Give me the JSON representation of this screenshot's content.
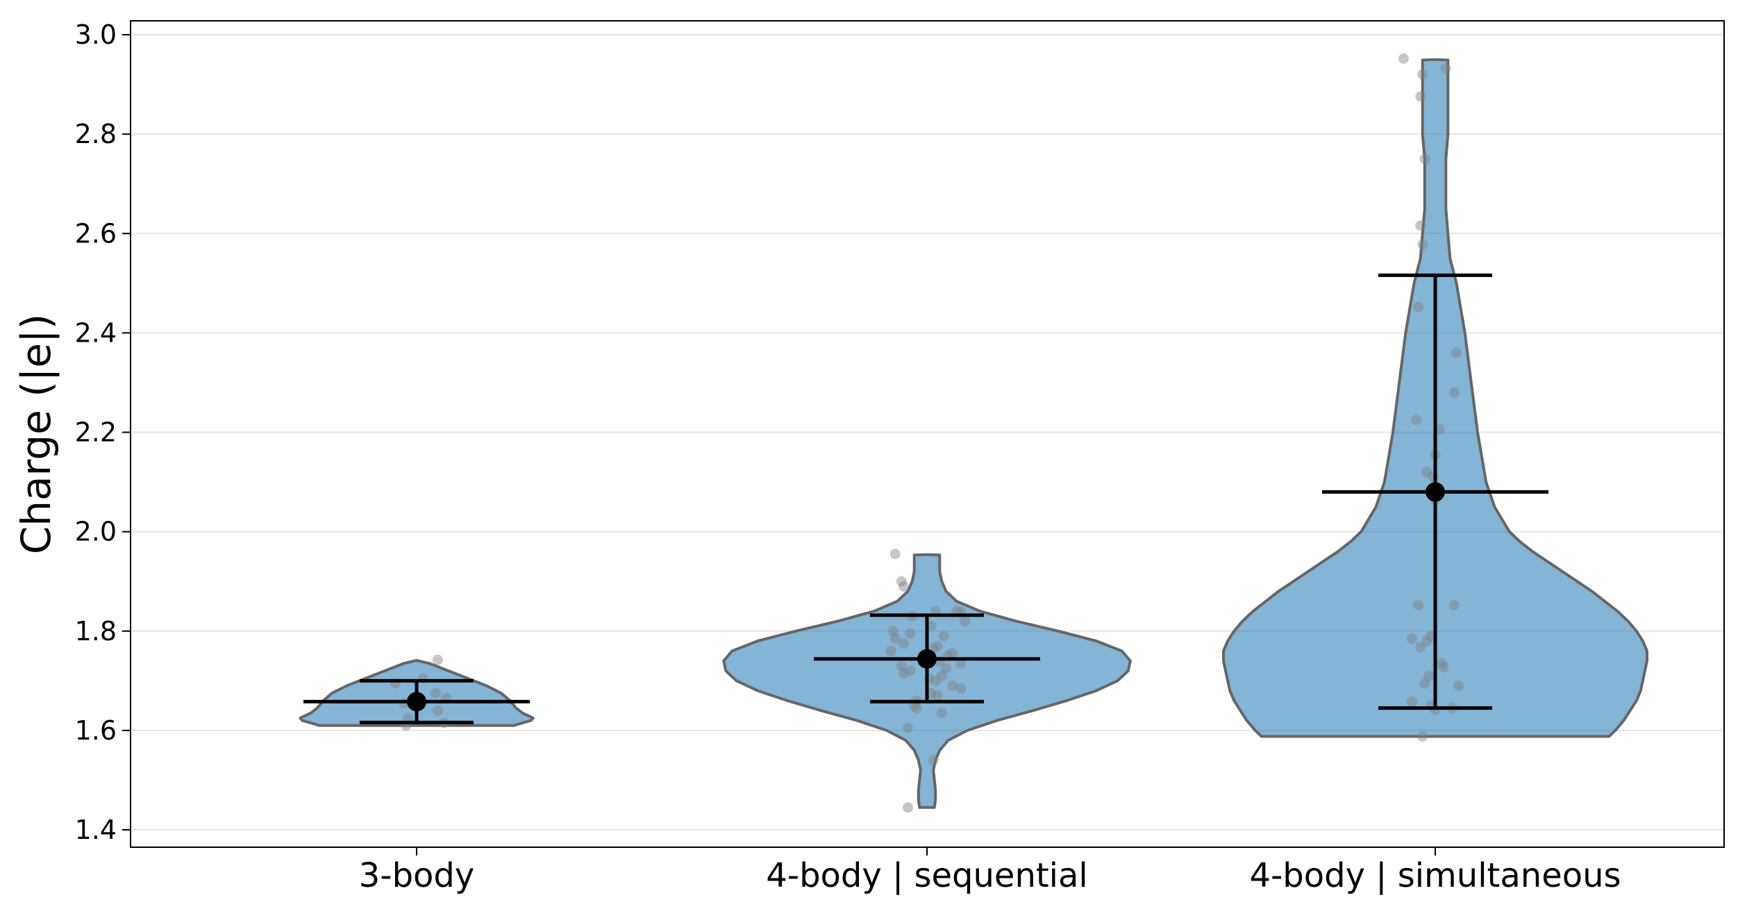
{
  "chart_data": {
    "type": "violin",
    "ylabel": "Charge (|e|)",
    "ylim": [
      1.365,
      3.03
    ],
    "yticks": [
      1.4,
      1.6,
      1.8,
      2.0,
      2.2,
      2.4,
      2.6,
      2.8,
      3.0
    ],
    "ytick_labels": [
      "1.4",
      "1.6",
      "1.8",
      "2.0",
      "2.2",
      "2.4",
      "2.6",
      "2.8",
      "3.0"
    ],
    "grid": "horizontal",
    "categories": [
      "3-body",
      "4-body | sequential",
      "4-body | simultaneous"
    ],
    "colors": {
      "fill": "#1f77b4",
      "edge": "#666666",
      "points": "#808080",
      "summary": "#000000"
    },
    "groups": [
      {
        "name": "3-body",
        "mean": 1.658,
        "error_low": 1.616,
        "error_high": 1.7,
        "violin_profile": [
          [
            1.61,
            0.46
          ],
          [
            1.615,
            0.5
          ],
          [
            1.62,
            0.54
          ],
          [
            1.625,
            0.55
          ],
          [
            1.635,
            0.5
          ],
          [
            1.645,
            0.47
          ],
          [
            1.66,
            0.44
          ],
          [
            1.675,
            0.4
          ],
          [
            1.69,
            0.33
          ],
          [
            1.705,
            0.24
          ],
          [
            1.72,
            0.15
          ],
          [
            1.735,
            0.06
          ],
          [
            1.741,
            0.0
          ]
        ],
        "points": [
          [
            1.742,
            0.1
          ],
          [
            1.695,
            -0.1
          ],
          [
            1.705,
            0.03
          ],
          [
            1.675,
            0.09
          ],
          [
            1.665,
            0.14
          ],
          [
            1.655,
            -0.06
          ],
          [
            1.64,
            0.1
          ],
          [
            1.625,
            -0.04
          ],
          [
            1.615,
            0.13
          ],
          [
            1.61,
            -0.05
          ]
        ]
      },
      {
        "name": "4-body | sequential",
        "mean": 1.744,
        "error_low": 1.658,
        "error_high": 1.832,
        "violin_profile": [
          [
            1.445,
            0.035
          ],
          [
            1.46,
            0.04
          ],
          [
            1.48,
            0.04
          ],
          [
            1.5,
            0.035
          ],
          [
            1.52,
            0.03
          ],
          [
            1.54,
            0.04
          ],
          [
            1.56,
            0.06
          ],
          [
            1.58,
            0.1
          ],
          [
            1.6,
            0.19
          ],
          [
            1.62,
            0.33
          ],
          [
            1.64,
            0.5
          ],
          [
            1.66,
            0.66
          ],
          [
            1.68,
            0.8
          ],
          [
            1.7,
            0.9
          ],
          [
            1.72,
            0.95
          ],
          [
            1.74,
            0.96
          ],
          [
            1.76,
            0.92
          ],
          [
            1.78,
            0.8
          ],
          [
            1.8,
            0.62
          ],
          [
            1.82,
            0.42
          ],
          [
            1.84,
            0.25
          ],
          [
            1.86,
            0.14
          ],
          [
            1.88,
            0.09
          ],
          [
            1.9,
            0.07
          ],
          [
            1.92,
            0.06
          ],
          [
            1.94,
            0.06
          ],
          [
            1.953,
            0.06
          ],
          [
            1.954,
            0.0
          ]
        ],
        "points": [
          [
            1.955,
            -0.15
          ],
          [
            1.9,
            -0.12
          ],
          [
            1.89,
            -0.11
          ],
          [
            1.84,
            0.04
          ],
          [
            1.84,
            0.14
          ],
          [
            1.838,
            0.16
          ],
          [
            1.83,
            -0.07
          ],
          [
            1.82,
            0.18
          ],
          [
            1.81,
            0.02
          ],
          [
            1.8,
            -0.16
          ],
          [
            1.795,
            -0.08
          ],
          [
            1.79,
            0.08
          ],
          [
            1.785,
            -0.15
          ],
          [
            1.775,
            -0.11
          ],
          [
            1.77,
            0.05
          ],
          [
            1.765,
            0.03
          ],
          [
            1.76,
            -0.17
          ],
          [
            1.755,
            0.12
          ],
          [
            1.75,
            0.1
          ],
          [
            1.745,
            -0.02
          ],
          [
            1.74,
            0.06
          ],
          [
            1.735,
            0.16
          ],
          [
            1.73,
            -0.12
          ],
          [
            1.725,
            0.09
          ],
          [
            1.72,
            -0.08
          ],
          [
            1.715,
            -0.11
          ],
          [
            1.71,
            0.07
          ],
          [
            1.705,
            0.01
          ],
          [
            1.7,
            0.04
          ],
          [
            1.69,
            0.12
          ],
          [
            1.685,
            0.16
          ],
          [
            1.675,
            0.02
          ],
          [
            1.67,
            0.05
          ],
          [
            1.66,
            -0.05
          ],
          [
            1.65,
            -0.06
          ],
          [
            1.645,
            -0.05
          ],
          [
            1.635,
            0.07
          ],
          [
            1.605,
            -0.09
          ],
          [
            1.54,
            0.03
          ],
          [
            1.445,
            -0.09
          ]
        ]
      },
      {
        "name": "4-body | simultaneous",
        "mean": 2.08,
        "error_low": 1.645,
        "error_high": 2.516,
        "violin_profile": [
          [
            1.588,
            0.82
          ],
          [
            1.6,
            0.85
          ],
          [
            1.62,
            0.89
          ],
          [
            1.64,
            0.92
          ],
          [
            1.66,
            0.95
          ],
          [
            1.68,
            0.97
          ],
          [
            1.7,
            0.98
          ],
          [
            1.72,
            0.99
          ],
          [
            1.74,
            1.0
          ],
          [
            1.76,
            1.0
          ],
          [
            1.78,
            0.98
          ],
          [
            1.8,
            0.95
          ],
          [
            1.82,
            0.91
          ],
          [
            1.84,
            0.86
          ],
          [
            1.86,
            0.8
          ],
          [
            1.88,
            0.74
          ],
          [
            1.9,
            0.67
          ],
          [
            1.92,
            0.6
          ],
          [
            1.94,
            0.53
          ],
          [
            1.96,
            0.46
          ],
          [
            1.98,
            0.4
          ],
          [
            2.0,
            0.35
          ],
          [
            2.05,
            0.28
          ],
          [
            2.1,
            0.24
          ],
          [
            2.15,
            0.22
          ],
          [
            2.2,
            0.2
          ],
          [
            2.3,
            0.17
          ],
          [
            2.4,
            0.14
          ],
          [
            2.5,
            0.1
          ],
          [
            2.55,
            0.07
          ],
          [
            2.6,
            0.06
          ],
          [
            2.65,
            0.05
          ],
          [
            2.7,
            0.05
          ],
          [
            2.75,
            0.05
          ],
          [
            2.8,
            0.06
          ],
          [
            2.85,
            0.06
          ],
          [
            2.9,
            0.06
          ],
          [
            2.949,
            0.06
          ],
          [
            2.95,
            0.0
          ]
        ],
        "points": [
          [
            2.952,
            -0.15
          ],
          [
            2.932,
            0.05
          ],
          [
            2.92,
            -0.06
          ],
          [
            2.876,
            -0.07
          ],
          [
            2.75,
            -0.05
          ],
          [
            2.616,
            -0.07
          ],
          [
            2.578,
            -0.06
          ],
          [
            2.452,
            -0.08
          ],
          [
            2.36,
            0.1
          ],
          [
            2.28,
            0.09
          ],
          [
            2.225,
            -0.09
          ],
          [
            2.206,
            0.02
          ],
          [
            2.155,
            0.0
          ],
          [
            2.12,
            -0.04
          ],
          [
            2.11,
            -0.01
          ],
          [
            2.064,
            0.0
          ],
          [
            1.852,
            -0.08
          ],
          [
            1.852,
            0.09
          ],
          [
            1.79,
            -0.02
          ],
          [
            1.785,
            -0.11
          ],
          [
            1.78,
            -0.04
          ],
          [
            1.768,
            -0.07
          ],
          [
            1.735,
            0.03
          ],
          [
            1.727,
            0.04
          ],
          [
            1.71,
            -0.03
          ],
          [
            1.695,
            -0.05
          ],
          [
            1.69,
            0.11
          ],
          [
            1.658,
            -0.11
          ],
          [
            1.65,
            -0.02
          ],
          [
            1.645,
            0.08
          ],
          [
            1.642,
            0.0
          ],
          [
            1.588,
            -0.06
          ]
        ]
      }
    ]
  }
}
